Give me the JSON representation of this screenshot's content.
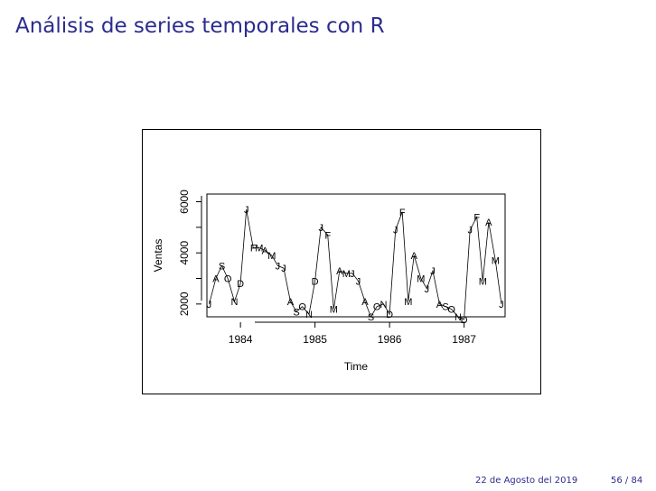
{
  "slide": {
    "title": "Análisis de series temporales con R",
    "footer_date": "22 de Agosto del 2019",
    "footer_page": "56 / 84"
  },
  "chart_data": {
    "type": "line",
    "title": "",
    "xlabel": "Time",
    "ylabel": "Ventas",
    "xlim": [
      1983.55,
      1987.55
    ],
    "ylim": [
      1500,
      6300
    ],
    "x_ticks": [
      1984,
      1985,
      1986,
      1987
    ],
    "y_ticks": [
      2000,
      4000,
      6000
    ],
    "grid": false,
    "point_style": "month-letter",
    "x": [
      1983.58,
      1983.67,
      1983.75,
      1983.83,
      1983.92,
      1984.0,
      1984.08,
      1984.17,
      1984.25,
      1984.33,
      1984.42,
      1984.5,
      1984.58,
      1984.67,
      1984.75,
      1984.83,
      1984.92,
      1985.0,
      1985.08,
      1985.17,
      1985.25,
      1985.33,
      1985.42,
      1985.5,
      1985.58,
      1985.67,
      1985.75,
      1985.83,
      1985.92,
      1986.0,
      1986.08,
      1986.17,
      1986.25,
      1986.33,
      1986.42,
      1986.5,
      1986.58,
      1986.67,
      1986.75,
      1986.83,
      1986.92,
      1987.0,
      1987.08,
      1987.17,
      1987.25,
      1987.33,
      1987.42,
      1987.5
    ],
    "series": [
      {
        "labels": [
          "J",
          "A",
          "S",
          "O",
          "N",
          "D",
          "J",
          "F",
          "M",
          "A",
          "M",
          "J",
          "J",
          "A",
          "S",
          "O",
          "N",
          "D",
          "J",
          "F",
          "M",
          "A",
          "M",
          "J",
          "J",
          "A",
          "S",
          "O",
          "N",
          "D",
          "J",
          "F",
          "M",
          "A",
          "M",
          "J",
          "J",
          "A",
          "S",
          "O",
          "N",
          "D",
          "J",
          "F",
          "M",
          "A",
          "M",
          "J"
        ],
        "values": [
          2000,
          3000,
          3500,
          3000,
          2100,
          2800,
          5700,
          4200,
          4200,
          4100,
          3900,
          3500,
          3400,
          2100,
          1700,
          1900,
          1600,
          2900,
          5000,
          4700,
          1800,
          3300,
          3200,
          3200,
          2900,
          2100,
          1500,
          1900,
          2000,
          1600,
          4900,
          5600,
          2100,
          3900,
          3000,
          2600,
          3300,
          2000,
          1900,
          1800,
          1500,
          1400,
          4900,
          5400,
          2900,
          5200,
          3700,
          2000
        ]
      }
    ]
  }
}
